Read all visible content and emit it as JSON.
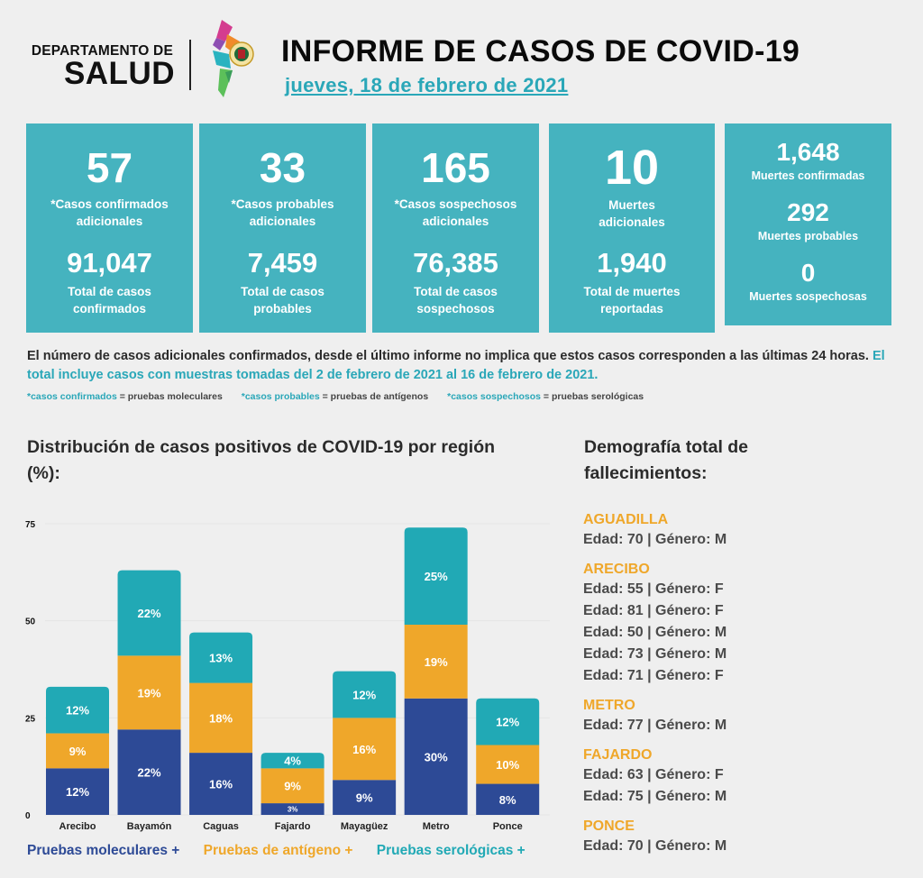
{
  "header": {
    "dept_top": "DEPARTAMENTO DE",
    "dept_main": "SALUD",
    "title": "INFORME DE CASOS DE COVID-19",
    "date": "jueves, 18 de febrero de 2021"
  },
  "colors": {
    "teal": "#45b3bf",
    "navy": "#2d4a96",
    "orange": "#efa72a",
    "cyan": "#21a9b5"
  },
  "cards": [
    {
      "value": "57",
      "label1": "*Casos confirmados",
      "label2": "adicionales",
      "total": "91,047",
      "tlabel1": "Total de casos",
      "tlabel2": "confirmados"
    },
    {
      "value": "33",
      "label1": "*Casos probables",
      "label2": "adicionales",
      "total": "7,459",
      "tlabel1": "Total de casos",
      "tlabel2": "probables"
    },
    {
      "value": "165",
      "label1": "*Casos sospechosos",
      "label2": "adicionales",
      "total": "76,385",
      "tlabel1": "Total de casos",
      "tlabel2": "sospechosos"
    },
    {
      "value": "10",
      "label1": "Muertes",
      "label2": "adicionales",
      "total": "1,940",
      "tlabel1": "Total de muertes",
      "tlabel2": "reportadas"
    }
  ],
  "deaths": [
    {
      "value": "1,648",
      "label": "Muertes confirmadas"
    },
    {
      "value": "292",
      "label": "Muertes probables"
    },
    {
      "value": "0",
      "label": "Muertes sospechosas"
    }
  ],
  "note": {
    "text": "El número de casos adicionales confirmados, desde el último informe no implica que estos casos corresponden a las últimas 24 horas. ",
    "highlight": "El total incluye casos con muestras tomadas del 2 de febrero de 2021 al 16 de febrero de 2021."
  },
  "footnotes": [
    {
      "key": "*casos confirmados",
      "value": " = pruebas moleculares"
    },
    {
      "key": "*casos probables",
      "value": " = pruebas de antígenos"
    },
    {
      "key": "*casos sospechosos",
      "value": " = pruebas serológicas"
    }
  ],
  "chart_title": "Distribución de casos positivos de COVID-19 por región (%):",
  "legend": [
    "Pruebas moleculares +",
    "Pruebas de antígeno +",
    "Pruebas serológicas +"
  ],
  "chart_data": {
    "type": "bar",
    "stacked": true,
    "title": "Distribución de casos positivos de COVID-19 por región (%):",
    "xlabel": "",
    "ylabel": "",
    "ylim": [
      0,
      75
    ],
    "yticks": [
      0,
      25,
      50,
      75
    ],
    "grid": true,
    "legend_position": "bottom",
    "categories": [
      "Arecibo",
      "Bayamón",
      "Caguas",
      "Fajardo",
      "Mayagüez",
      "Metro",
      "Ponce"
    ],
    "series": [
      {
        "name": "Pruebas moleculares",
        "color": "#2d4a96",
        "values": [
          12,
          22,
          16,
          3,
          9,
          30,
          8
        ]
      },
      {
        "name": "Pruebas de antígeno",
        "color": "#efa72a",
        "values": [
          9,
          19,
          18,
          9,
          16,
          19,
          10
        ]
      },
      {
        "name": "Pruebas serológicas",
        "color": "#21a9b5",
        "values": [
          12,
          22,
          13,
          4,
          12,
          25,
          12
        ]
      }
    ]
  },
  "demography": {
    "title": "Demografía total de fallecimientos:",
    "regions": [
      {
        "name": "AGUADILLA",
        "entries": [
          "Edad: 70 | Género: M"
        ]
      },
      {
        "name": "ARECIBO",
        "entries": [
          "Edad: 55 | Género: F",
          "Edad: 81 | Género: F",
          "Edad: 50 | Género: M",
          "Edad: 73 | Género: M",
          "Edad: 71 | Género: F"
        ]
      },
      {
        "name": "METRO",
        "entries": [
          "Edad: 77 | Género: M"
        ]
      },
      {
        "name": "FAJARDO",
        "entries": [
          "Edad: 63 | Género: F",
          "Edad: 75 | Género: M"
        ]
      },
      {
        "name": "PONCE",
        "entries": [
          "Edad: 70 | Género: M"
        ]
      }
    ]
  }
}
